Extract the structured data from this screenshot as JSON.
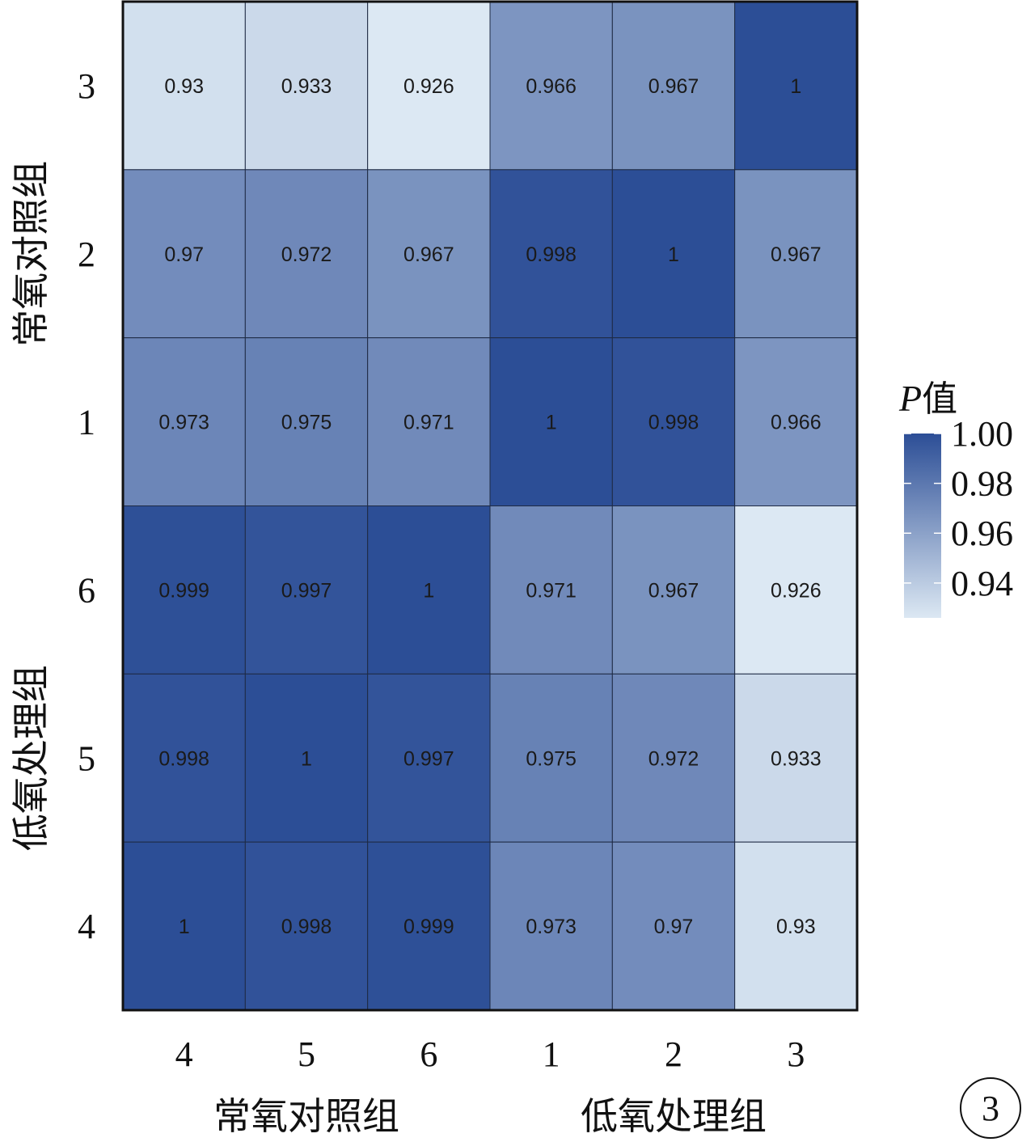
{
  "chart_data": {
    "type": "heatmap",
    "x_categories": [
      "4",
      "5",
      "6",
      "1",
      "2",
      "3"
    ],
    "y_categories": [
      "3",
      "2",
      "1",
      "6",
      "5",
      "4"
    ],
    "x_groups": [
      {
        "label": "常氧对照组",
        "span": [
          0,
          2
        ]
      },
      {
        "label": "低氧处理组",
        "span": [
          3,
          5
        ]
      }
    ],
    "y_groups": [
      {
        "label": "常氧对照组",
        "span": [
          0,
          2
        ]
      },
      {
        "label": "低氧处理组",
        "span": [
          3,
          5
        ]
      }
    ],
    "values": [
      [
        "0.93",
        "0.933",
        "0.926",
        "0.966",
        "0.967",
        "1"
      ],
      [
        "0.97",
        "0.972",
        "0.967",
        "0.998",
        "1",
        "0.967"
      ],
      [
        "0.973",
        "0.975",
        "0.971",
        "1",
        "0.998",
        "0.966"
      ],
      [
        "0.999",
        "0.997",
        "1",
        "0.971",
        "0.967",
        "0.926"
      ],
      [
        "0.998",
        "1",
        "0.997",
        "0.975",
        "0.972",
        "0.933"
      ],
      [
        "1",
        "0.998",
        "0.999",
        "0.973",
        "0.97",
        "0.93"
      ]
    ],
    "color_scale": {
      "min": 0.926,
      "max": 1.0,
      "low_color": "#dce8f3",
      "high_color": "#2c4e96"
    },
    "legend": {
      "title_italic": "P",
      "title_rest": "值",
      "ticks": [
        "1.00",
        "0.98",
        "0.96",
        "0.94"
      ],
      "tick_values": [
        1.0,
        0.98,
        0.96,
        0.94
      ],
      "position": "right"
    }
  },
  "panel_number": "3"
}
